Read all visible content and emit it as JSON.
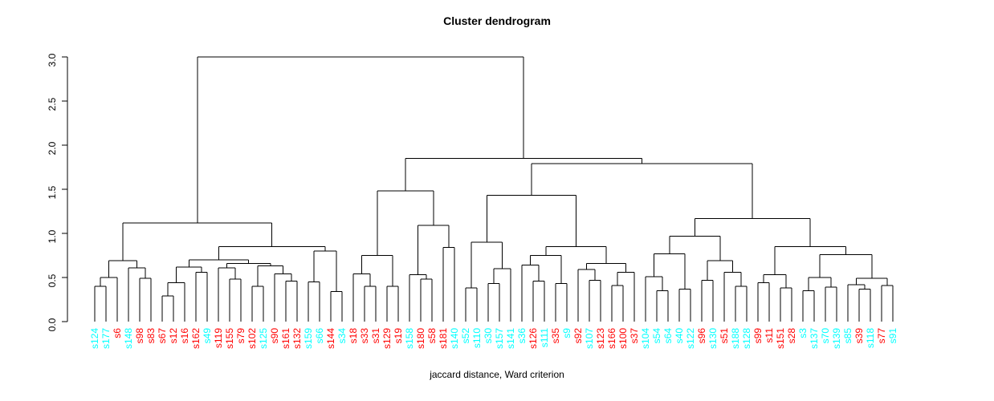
{
  "page": {
    "title": "Cluster dendrogram",
    "caption": "jaccard distance, Ward criterion"
  },
  "chart_data": {
    "type": "dendrogram",
    "title": "Cluster dendrogram",
    "xlabel": "jaccard distance, Ward criterion",
    "ylabel": "",
    "ylim": [
      0,
      3
    ],
    "yticks": [
      0.0,
      0.5,
      1.0,
      1.5,
      2.0,
      2.5,
      3.0
    ],
    "grid": false,
    "line_color": "#000000",
    "label_palette": {
      "cyan": "#00FFFF",
      "red": "#FF0000"
    },
    "leaves": [
      [
        "s124",
        "cyan"
      ],
      [
        "s177",
        "cyan"
      ],
      [
        "s6",
        "red"
      ],
      [
        "s148",
        "cyan"
      ],
      [
        "s98",
        "red"
      ],
      [
        "s83",
        "red"
      ],
      [
        "s67",
        "red"
      ],
      [
        "s12",
        "red"
      ],
      [
        "s16",
        "red"
      ],
      [
        "s162",
        "red"
      ],
      [
        "s49",
        "cyan"
      ],
      [
        "s119",
        "red"
      ],
      [
        "s155",
        "red"
      ],
      [
        "s79",
        "red"
      ],
      [
        "s102",
        "red"
      ],
      [
        "s125",
        "cyan"
      ],
      [
        "s90",
        "red"
      ],
      [
        "s161",
        "red"
      ],
      [
        "s132",
        "red"
      ],
      [
        "s159",
        "cyan"
      ],
      [
        "s66",
        "cyan"
      ],
      [
        "s144",
        "red"
      ],
      [
        "s34",
        "cyan"
      ],
      [
        "s18",
        "red"
      ],
      [
        "s33",
        "red"
      ],
      [
        "s31",
        "red"
      ],
      [
        "s129",
        "red"
      ],
      [
        "s19",
        "red"
      ],
      [
        "s158",
        "cyan"
      ],
      [
        "s180",
        "red"
      ],
      [
        "s58",
        "red"
      ],
      [
        "s181",
        "red"
      ],
      [
        "s140",
        "cyan"
      ],
      [
        "s52",
        "cyan"
      ],
      [
        "s110",
        "cyan"
      ],
      [
        "s30",
        "cyan"
      ],
      [
        "s157",
        "cyan"
      ],
      [
        "s141",
        "cyan"
      ],
      [
        "s36",
        "cyan"
      ],
      [
        "s126",
        "red"
      ],
      [
        "s111",
        "cyan"
      ],
      [
        "s35",
        "red"
      ],
      [
        "s9",
        "cyan"
      ],
      [
        "s92",
        "red"
      ],
      [
        "s107",
        "cyan"
      ],
      [
        "s123",
        "red"
      ],
      [
        "s166",
        "red"
      ],
      [
        "s100",
        "red"
      ],
      [
        "s37",
        "red"
      ],
      [
        "s104",
        "cyan"
      ],
      [
        "s54",
        "cyan"
      ],
      [
        "s64",
        "cyan"
      ],
      [
        "s40",
        "cyan"
      ],
      [
        "s122",
        "cyan"
      ],
      [
        "s96",
        "red"
      ],
      [
        "s130",
        "cyan"
      ],
      [
        "s51",
        "red"
      ],
      [
        "s188",
        "cyan"
      ],
      [
        "s128",
        "cyan"
      ],
      [
        "s99",
        "red"
      ],
      [
        "s11",
        "red"
      ],
      [
        "s151",
        "red"
      ],
      [
        "s28",
        "red"
      ],
      [
        "s3",
        "cyan"
      ],
      [
        "s137",
        "cyan"
      ],
      [
        "s70",
        "cyan"
      ],
      [
        "s139",
        "cyan"
      ],
      [
        "s85",
        "cyan"
      ],
      [
        "s39",
        "red"
      ],
      [
        "s118",
        "cyan"
      ],
      [
        "s77",
        "red"
      ],
      [
        "s91",
        "cyan"
      ]
    ],
    "tree": [
      3.0,
      [
        1.12,
        [
          0.69,
          [
            0.5,
            [
              0.4,
              "s124",
              "s177"
            ],
            "s6"
          ],
          [
            0.61,
            "s148",
            [
              0.49,
              "s98",
              "s83"
            ]
          ]
        ],
        [
          0.85,
          [
            0.7,
            [
              0.62,
              [
                0.44,
                [
                  0.29,
                  "s67",
                  "s12"
                ],
                "s16"
              ],
              [
                0.56,
                "s162",
                "s49"
              ]
            ],
            [
              0.66,
              [
                0.61,
                "s119",
                [
                  0.48,
                  "s155",
                  "s79"
                ]
              ],
              [
                0.63,
                [
                  0.4,
                  "s102",
                  "s125"
                ],
                [
                  0.54,
                  "s90",
                  [
                    0.46,
                    "s161",
                    "s132"
                  ]
                ]
              ]
            ]
          ],
          [
            0.8,
            [
              0.45,
              "s159",
              "s66"
            ],
            [
              0.34,
              "s144",
              "s34"
            ]
          ]
        ]
      ],
      [
        1.85,
        [
          1.48,
          [
            0.75,
            [
              0.54,
              "s18",
              [
                0.4,
                "s33",
                "s31"
              ]
            ],
            [
              0.4,
              "s129",
              "s19"
            ]
          ],
          [
            1.09,
            [
              0.53,
              "s158",
              [
                0.48,
                "s180",
                "s58"
              ]
            ],
            [
              0.84,
              "s181",
              "s140"
            ]
          ]
        ],
        [
          1.79,
          [
            1.43,
            [
              0.9,
              [
                0.38,
                "s52",
                "s110"
              ],
              [
                0.6,
                [
                  0.43,
                  "s30",
                  "s157"
                ],
                "s141"
              ]
            ],
            [
              0.85,
              [
                0.75,
                [
                  0.64,
                  "s36",
                  [
                    0.46,
                    "s126",
                    "s111"
                  ]
                ],
                [
                  0.43,
                  "s35",
                  "s9"
                ]
              ],
              [
                0.66,
                [
                  0.59,
                  "s92",
                  [
                    0.47,
                    "s107",
                    "s123"
                  ]
                ],
                [
                  0.56,
                  [
                    0.41,
                    "s166",
                    "s100"
                  ],
                  "s37"
                ]
              ]
            ]
          ],
          [
            1.17,
            [
              0.97,
              [
                0.77,
                [
                  0.51,
                  "s104",
                  [
                    0.35,
                    "s54",
                    "s64"
                  ]
                ],
                [
                  0.37,
                  "s40",
                  "s122"
                ]
              ],
              [
                0.69,
                [
                  0.47,
                  "s96",
                  "s130"
                ],
                [
                  0.56,
                  "s51",
                  [
                    0.4,
                    "s188",
                    "s128"
                  ]
                ]
              ]
            ],
            [
              0.85,
              [
                0.53,
                [
                  0.44,
                  "s99",
                  "s11"
                ],
                [
                  0.38,
                  "s151",
                  "s28"
                ]
              ],
              [
                0.76,
                [
                  0.5,
                  [
                    0.35,
                    "s3",
                    "s137"
                  ],
                  [
                    0.39,
                    "s70",
                    "s139"
                  ]
                ],
                [
                  0.49,
                  [
                    0.42,
                    "s85",
                    [
                      0.37,
                      "s39",
                      "s118"
                    ]
                  ],
                  [
                    0.41,
                    "s77",
                    "s91"
                  ]
                ]
              ]
            ]
          ]
        ]
      ]
    ]
  }
}
